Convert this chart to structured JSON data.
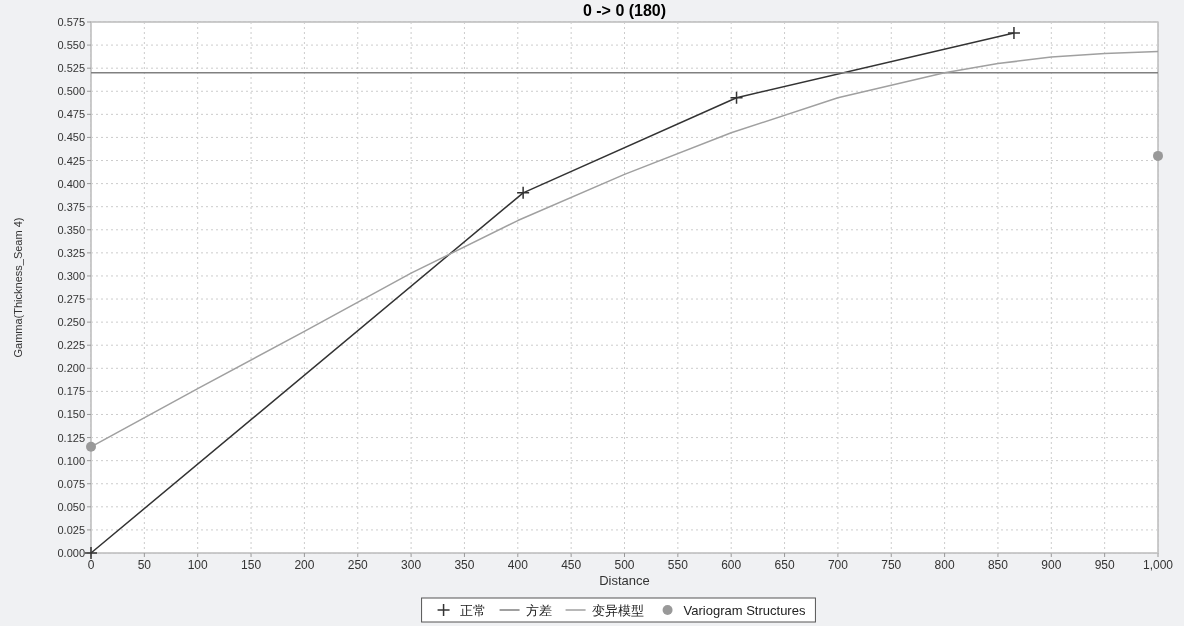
{
  "chart_data": {
    "type": "line",
    "title": "0 -> 0 (180)",
    "xlabel": "Distance",
    "ylabel": "Gamma(Thickness_Seam 4)",
    "xlim": [
      0,
      1000
    ],
    "ylim": [
      0,
      0.575
    ],
    "xticks": [
      0,
      50,
      100,
      150,
      200,
      250,
      300,
      350,
      400,
      450,
      500,
      550,
      600,
      650,
      700,
      750,
      800,
      850,
      900,
      950,
      {
        "value": 1000,
        "label": "1,000"
      }
    ],
    "yticks": [
      {
        "value": 0,
        "label": "0.000"
      },
      {
        "value": 0.025,
        "label": "0.025"
      },
      {
        "value": 0.05,
        "label": "0.050"
      },
      {
        "value": 0.075,
        "label": "0.075"
      },
      {
        "value": 0.1,
        "label": "0.100"
      },
      {
        "value": 0.125,
        "label": "0.125"
      },
      {
        "value": 0.15,
        "label": "0.150"
      },
      {
        "value": 0.175,
        "label": "0.175"
      },
      {
        "value": 0.2,
        "label": "0.200"
      },
      {
        "value": 0.225,
        "label": "0.225"
      },
      {
        "value": 0.25,
        "label": "0.250"
      },
      {
        "value": 0.275,
        "label": "0.275"
      },
      {
        "value": 0.3,
        "label": "0.300"
      },
      {
        "value": 0.325,
        "label": "0.325"
      },
      {
        "value": 0.35,
        "label": "0.350"
      },
      {
        "value": 0.375,
        "label": "0.375"
      },
      {
        "value": 0.4,
        "label": "0.400"
      },
      {
        "value": 0.425,
        "label": "0.425"
      },
      {
        "value": 0.45,
        "label": "0.450"
      },
      {
        "value": 0.475,
        "label": "0.475"
      },
      {
        "value": 0.5,
        "label": "0.500"
      },
      {
        "value": 0.525,
        "label": "0.525"
      },
      {
        "value": 0.55,
        "label": "0.550"
      },
      {
        "value": 0.575,
        "label": "0.575"
      }
    ],
    "grid": true,
    "legend": "bottom",
    "series": [
      {
        "name": "正常",
        "type": "line",
        "marker": "cross",
        "color": "#333333",
        "x": [
          0,
          405,
          605,
          865
        ],
        "values": [
          0,
          0.39,
          0.493,
          0.563
        ]
      },
      {
        "name": "方差",
        "type": "line",
        "marker": "none",
        "color": "#808080",
        "x": [
          0,
          1000
        ],
        "values": [
          0.52,
          0.52
        ]
      },
      {
        "name": "变异模型",
        "type": "line",
        "marker": "none",
        "color": "#a0a0a0",
        "x": [
          0,
          100,
          200,
          300,
          400,
          500,
          600,
          700,
          800,
          850,
          900,
          950,
          1000
        ],
        "values": [
          0.115,
          0.178,
          0.24,
          0.303,
          0.36,
          0.41,
          0.455,
          0.493,
          0.52,
          0.53,
          0.537,
          0.541,
          0.543
        ]
      },
      {
        "name": "Variogram Structures",
        "type": "scatter",
        "marker": "circle",
        "color": "#999999",
        "x": [
          0,
          1000
        ],
        "values": [
          0.115,
          0.43
        ]
      }
    ]
  }
}
